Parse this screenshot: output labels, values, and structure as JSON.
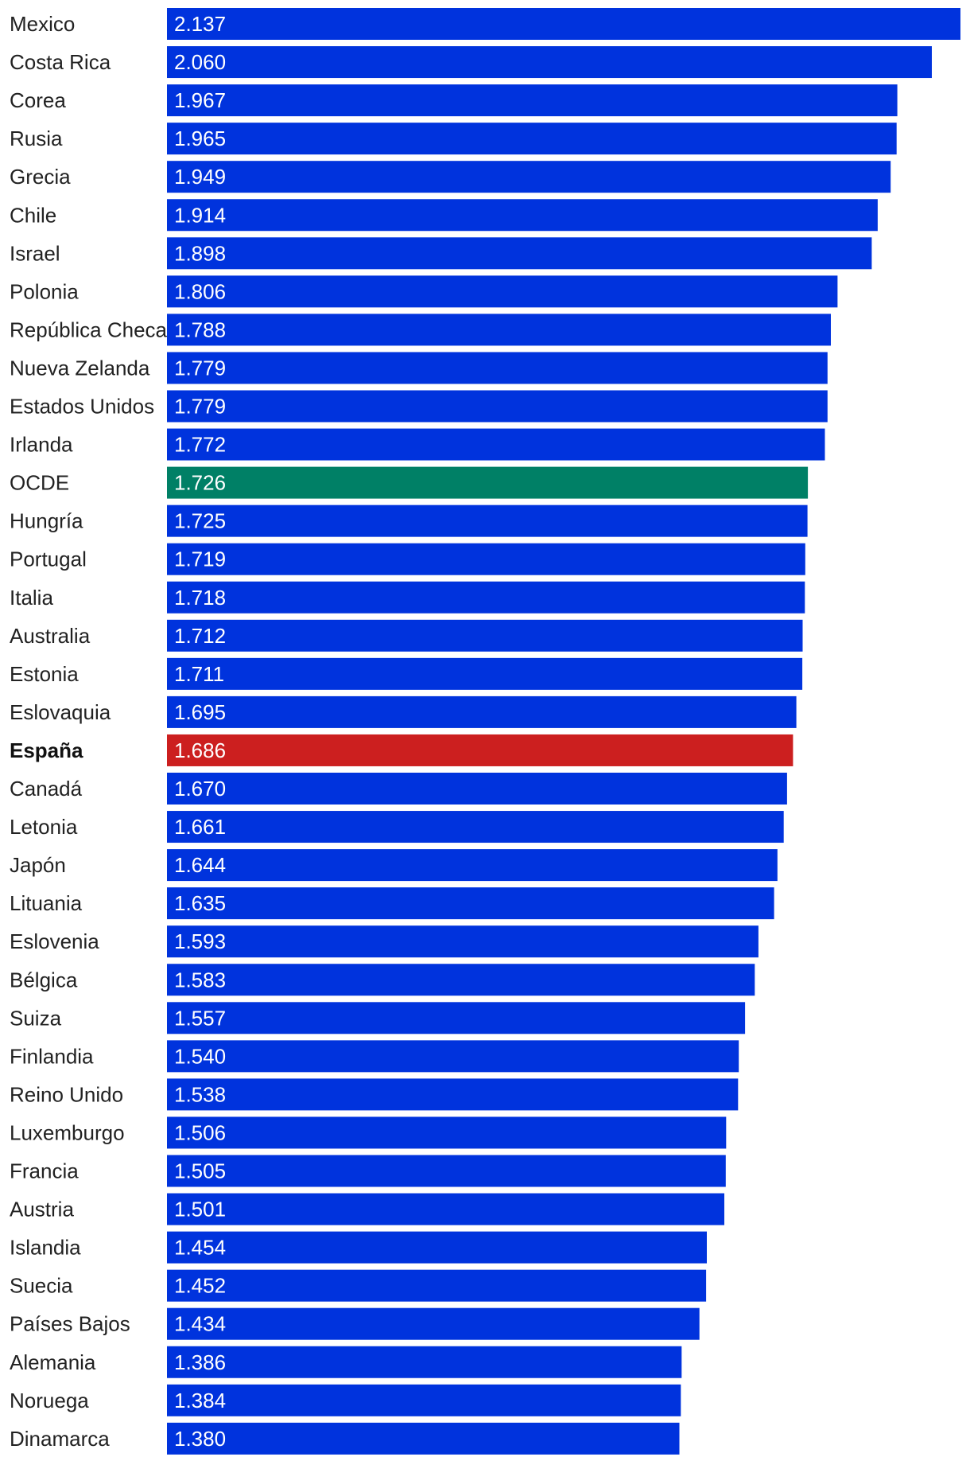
{
  "chart_data": {
    "type": "bar",
    "orientation": "horizontal",
    "title": "",
    "xlabel": "",
    "ylabel": "",
    "xlim": [
      0,
      2.137
    ],
    "grid": false,
    "legend": "none",
    "colors": {
      "default": "#0033dd",
      "average": "#008066",
      "highlight": "#cc1f1f"
    },
    "categories": [
      "Mexico",
      "Costa Rica",
      "Corea",
      "Rusia",
      "Grecia",
      "Chile",
      "Israel",
      "Polonia",
      "República Checa",
      "Nueva Zelanda",
      "Estados Unidos",
      "Irlanda",
      "OCDE",
      "Hungría",
      "Portugal",
      "Italia",
      "Australia",
      "Estonia",
      "Eslovaquia",
      "España",
      "Canadá",
      "Letonia",
      "Japón",
      "Lituania",
      "Eslovenia",
      "Bélgica",
      "Suiza",
      "Finlandia",
      "Reino Unido",
      "Luxemburgo",
      "Francia",
      "Austria",
      "Islandia",
      "Suecia",
      "Países Bajos",
      "Alemania",
      "Noruega",
      "Dinamarca"
    ],
    "values": [
      2.137,
      2.06,
      1.967,
      1.965,
      1.949,
      1.914,
      1.898,
      1.806,
      1.788,
      1.779,
      1.779,
      1.772,
      1.726,
      1.725,
      1.719,
      1.718,
      1.712,
      1.711,
      1.695,
      1.686,
      1.67,
      1.661,
      1.644,
      1.635,
      1.593,
      1.583,
      1.557,
      1.54,
      1.538,
      1.506,
      1.505,
      1.501,
      1.454,
      1.452,
      1.434,
      1.386,
      1.384,
      1.38
    ],
    "value_labels": [
      "2.137",
      "2.060",
      "1.967",
      "1.965",
      "1.949",
      "1.914",
      "1.898",
      "1.806",
      "1.788",
      "1.779",
      "1.779",
      "1.772",
      "1.726",
      "1.725",
      "1.719",
      "1.718",
      "1.712",
      "1.711",
      "1.695",
      "1.686",
      "1.670",
      "1.661",
      "1.644",
      "1.635",
      "1.593",
      "1.583",
      "1.557",
      "1.540",
      "1.538",
      "1.506",
      "1.505",
      "1.501",
      "1.454",
      "1.452",
      "1.434",
      "1.386",
      "1.384",
      "1.380"
    ],
    "average_category": "OCDE",
    "highlight_category": "España"
  }
}
